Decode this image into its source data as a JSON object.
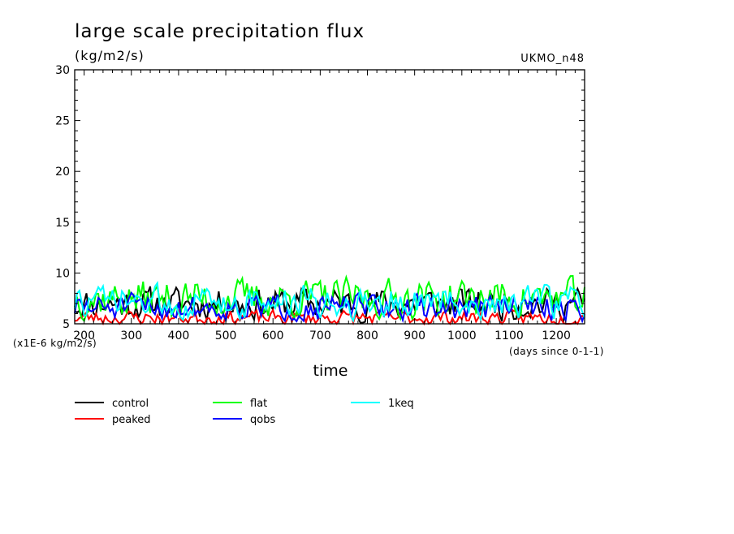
{
  "chart_data": {
    "type": "line",
    "title": "large scale precipitation flux",
    "units_label": "(kg/m2/s)",
    "model_label": "UKMO_n48",
    "xlabel": "time",
    "x_units_note": "(days since 0-1-1)",
    "y_scale_note": "(x1E-6 kg/m2/s)",
    "xlim": [
      180,
      1260
    ],
    "ylim": [
      5,
      30
    ],
    "x_ticks": [
      200,
      300,
      400,
      500,
      600,
      700,
      800,
      900,
      1000,
      1100,
      1200
    ],
    "y_ticks": [
      5,
      10,
      15,
      20,
      25,
      30
    ],
    "legend_position": "bottom",
    "series": [
      {
        "name": "control",
        "color": "#000000",
        "mean": 7.0,
        "amp": 1.0,
        "seed": 11
      },
      {
        "name": "peaked",
        "color": "#ff0000",
        "mean": 5.6,
        "amp": 0.45,
        "seed": 23
      },
      {
        "name": "flat",
        "color": "#00ff00",
        "mean": 7.5,
        "amp": 1.2,
        "seed": 37
      },
      {
        "name": "qobs",
        "color": "#0000ff",
        "mean": 6.6,
        "amp": 0.8,
        "seed": 51
      },
      {
        "name": "1keq",
        "color": "#00ffff",
        "mean": 7.1,
        "amp": 1.0,
        "seed": 73
      }
    ]
  }
}
